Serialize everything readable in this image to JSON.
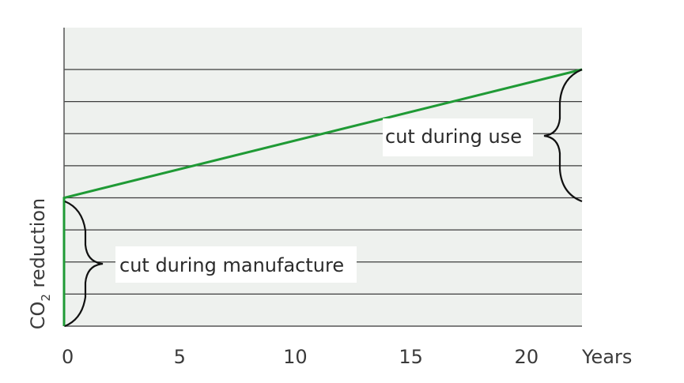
{
  "chart_data": {
    "type": "line",
    "ylabel_main": "CO",
    "ylabel_sub": "2",
    "ylabel_rest": " reduction",
    "xunit_label": "Years",
    "xlim": [
      0,
      22.4
    ],
    "ylim": [
      0,
      8
    ],
    "x_ticks": [
      0,
      5,
      10,
      15,
      20
    ],
    "x_tick_labels": [
      "0",
      "5",
      "10",
      "15",
      "20"
    ],
    "y_gridlines": [
      1,
      2,
      3,
      4,
      5,
      6,
      7,
      8
    ],
    "grid": true,
    "colors": {
      "line": "#1f9a35",
      "plot_bg": "#eef1ee",
      "grid": "#3c3c3c",
      "axis": "#555555"
    },
    "series": [
      {
        "points": [
          [
            0,
            0
          ],
          [
            0,
            4
          ],
          [
            22.4,
            8
          ]
        ]
      }
    ],
    "annotations": {
      "manufacture": "cut during manufacture",
      "use": "cut during use"
    }
  }
}
